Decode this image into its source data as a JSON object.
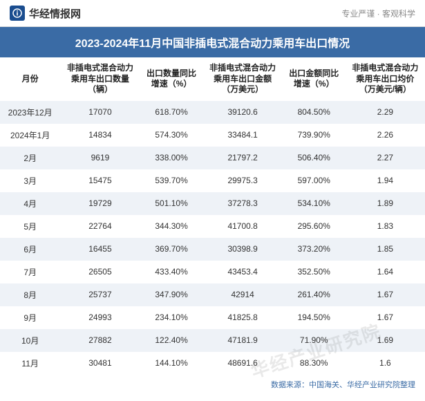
{
  "header": {
    "logo_glyph": "info",
    "logo_text": "华经情报网",
    "tagline": "专业严谨 · 客观科学"
  },
  "title": "2023-2024年11月中国非插电式混合动力乘用车出口情况",
  "columns": [
    "月份",
    "非插电式混合动力乘用车出口数量（辆）",
    "出口数量同比增速（%）",
    "非插电式混合动力乘用车出口金额（万美元）",
    "出口金额同比增速（%）",
    "非插电式混合动力乘用车出口均价（万美元/辆）"
  ],
  "rows": [
    [
      "2023年12月",
      "17070",
      "618.70%",
      "39120.6",
      "804.50%",
      "2.29"
    ],
    [
      "2024年1月",
      "14834",
      "574.30%",
      "33484.1",
      "739.90%",
      "2.26"
    ],
    [
      "2月",
      "9619",
      "338.00%",
      "21797.2",
      "506.40%",
      "2.27"
    ],
    [
      "3月",
      "15475",
      "539.70%",
      "29975.3",
      "597.00%",
      "1.94"
    ],
    [
      "4月",
      "19729",
      "501.10%",
      "37278.3",
      "534.10%",
      "1.89"
    ],
    [
      "5月",
      "22764",
      "344.30%",
      "41700.8",
      "295.60%",
      "1.83"
    ],
    [
      "6月",
      "16455",
      "369.70%",
      "30398.9",
      "373.20%",
      "1.85"
    ],
    [
      "7月",
      "26505",
      "433.40%",
      "43453.4",
      "352.50%",
      "1.64"
    ],
    [
      "8月",
      "25737",
      "347.90%",
      "42914",
      "261.40%",
      "1.67"
    ],
    [
      "9月",
      "24993",
      "234.10%",
      "41825.8",
      "194.50%",
      "1.67"
    ],
    [
      "10月",
      "27882",
      "122.40%",
      "47181.9",
      "71.90%",
      "1.69"
    ],
    [
      "11月",
      "30481",
      "144.10%",
      "48691.6",
      "88.30%",
      "1.6"
    ]
  ],
  "source": "数据来源：中国海关、华经产业研究院整理",
  "watermark": "华经产业研究院",
  "style": {
    "title_bg": "#3a6ba5",
    "title_color": "#ffffff",
    "row_odd_bg": "#eef2f7",
    "row_even_bg": "#ffffff",
    "text_color": "#333333",
    "source_color": "#3a6ba5",
    "watermark_color": "rgba(120,120,120,0.16)",
    "title_fontsize": 16,
    "body_fontsize": 12,
    "header_fontsize": 12
  }
}
